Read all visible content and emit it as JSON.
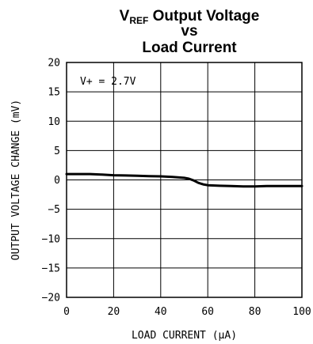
{
  "chart_data": {
    "type": "line",
    "title": {
      "line1_main": "V",
      "line1_sub": "REF",
      "line1_rest": " Output Voltage",
      "line2": "vs",
      "line3": "Load Current"
    },
    "xlabel": "LOAD CURRENT (μA)",
    "ylabel": "OUTPUT VOLTAGE CHANGE (mV)",
    "xlim": [
      0,
      100
    ],
    "ylim": [
      -20,
      20
    ],
    "xticks": [
      0,
      20,
      40,
      60,
      80,
      100
    ],
    "yticks": [
      20,
      15,
      10,
      5,
      0,
      -5,
      -10,
      -15,
      -20
    ],
    "xtick_labels": [
      "0",
      "20",
      "40",
      "60",
      "80",
      "100"
    ],
    "ytick_labels": [
      "20",
      "15",
      "10",
      "5",
      "0",
      "−5",
      "−10",
      "−15",
      "−20"
    ],
    "grid": true,
    "annotation": "V+ = 2.7V",
    "series": [
      {
        "x": [
          0,
          5,
          10,
          15,
          20,
          25,
          30,
          35,
          40,
          45,
          50,
          52,
          54,
          56,
          58,
          60,
          65,
          70,
          75,
          80,
          85,
          90,
          95,
          100
        ],
        "y": [
          1.0,
          1.0,
          1.0,
          0.9,
          0.8,
          0.75,
          0.7,
          0.65,
          0.6,
          0.5,
          0.35,
          0.2,
          -0.1,
          -0.5,
          -0.75,
          -0.9,
          -1.0,
          -1.05,
          -1.1,
          -1.1,
          -1.05,
          -1.05,
          -1.05,
          -1.05
        ],
        "color": "#000000"
      }
    ]
  }
}
